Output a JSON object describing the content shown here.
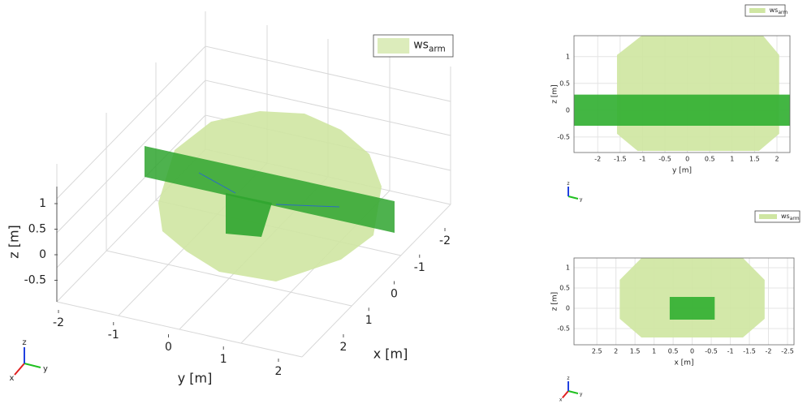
{
  "chart_data": [
    {
      "type": "3d",
      "xlabel": "x [m]",
      "ylabel": "y [m]",
      "zlabel": "z [m]",
      "xlim": [
        -2.3,
        2.3
      ],
      "ylim": [
        -2.3,
        2.3
      ],
      "zlim": [
        -0.8,
        1.5
      ],
      "xticks": [
        -2,
        -1,
        0,
        1,
        2
      ],
      "yticks": [
        -2,
        -1,
        0,
        1,
        2
      ],
      "zticks": [
        -0.5,
        0,
        0.5,
        1
      ],
      "grid": true,
      "legend": {
        "name": "ws",
        "subscript": "arm",
        "color": "#dcecbb"
      },
      "triad": [
        "x",
        "y",
        "z"
      ]
    },
    {
      "type": "area",
      "xlabel": "y [m]",
      "ylabel": "z [m]",
      "xlim": [
        -2.53,
        2.29
      ],
      "ylim": [
        -0.79,
        1.39
      ],
      "xticks": [
        -2,
        -1.5,
        -1,
        -0.5,
        0,
        0.5,
        1,
        1.5,
        2
      ],
      "yticks": [
        -0.5,
        0,
        0.5,
        1
      ],
      "grid": true,
      "series": [
        {
          "name": "ws",
          "subscript": "arm",
          "color": "#cfe6a2",
          "x": [
            -1.02,
            1.69,
            2.05,
            2.05,
            1.6,
            -1.11,
            -1.57,
            -1.57
          ],
          "values": [
            1.39,
            1.39,
            1.03,
            -0.44,
            -0.76,
            -0.76,
            -0.44,
            1.03
          ]
        },
        {
          "color": "#33b033",
          "x": [
            -2.53,
            2.29,
            2.29,
            -2.53
          ],
          "values": [
            0.29,
            0.29,
            -0.29,
            -0.29
          ]
        }
      ],
      "triad": [
        "y",
        "z"
      ]
    },
    {
      "type": "area",
      "xlabel": "x [m]",
      "ylabel": "z [m]",
      "xlim": [
        3.1,
        -2.67
      ],
      "ylim": [
        -0.9,
        1.24
      ],
      "xticks": [
        2.5,
        2,
        1.5,
        1,
        0.5,
        0,
        -0.5,
        -1,
        -1.5,
        -2,
        -2.5
      ],
      "yticks": [
        -0.5,
        0,
        0.5,
        1
      ],
      "grid": true,
      "series": [
        {
          "name": "ws",
          "subscript": "arm",
          "color": "#cfe6a2",
          "x": [
            1.33,
            -1.33,
            -1.9,
            -1.9,
            -1.33,
            1.33,
            1.9,
            1.9
          ],
          "values": [
            1.24,
            1.24,
            0.7,
            -0.26,
            -0.72,
            -0.72,
            -0.26,
            0.7
          ]
        },
        {
          "color": "#33b033",
          "x": [
            0.59,
            -0.59,
            -0.59,
            0.59
          ],
          "values": [
            0.28,
            0.28,
            -0.28,
            -0.28
          ]
        }
      ],
      "triad": [
        "x",
        "y",
        "z"
      ]
    }
  ]
}
